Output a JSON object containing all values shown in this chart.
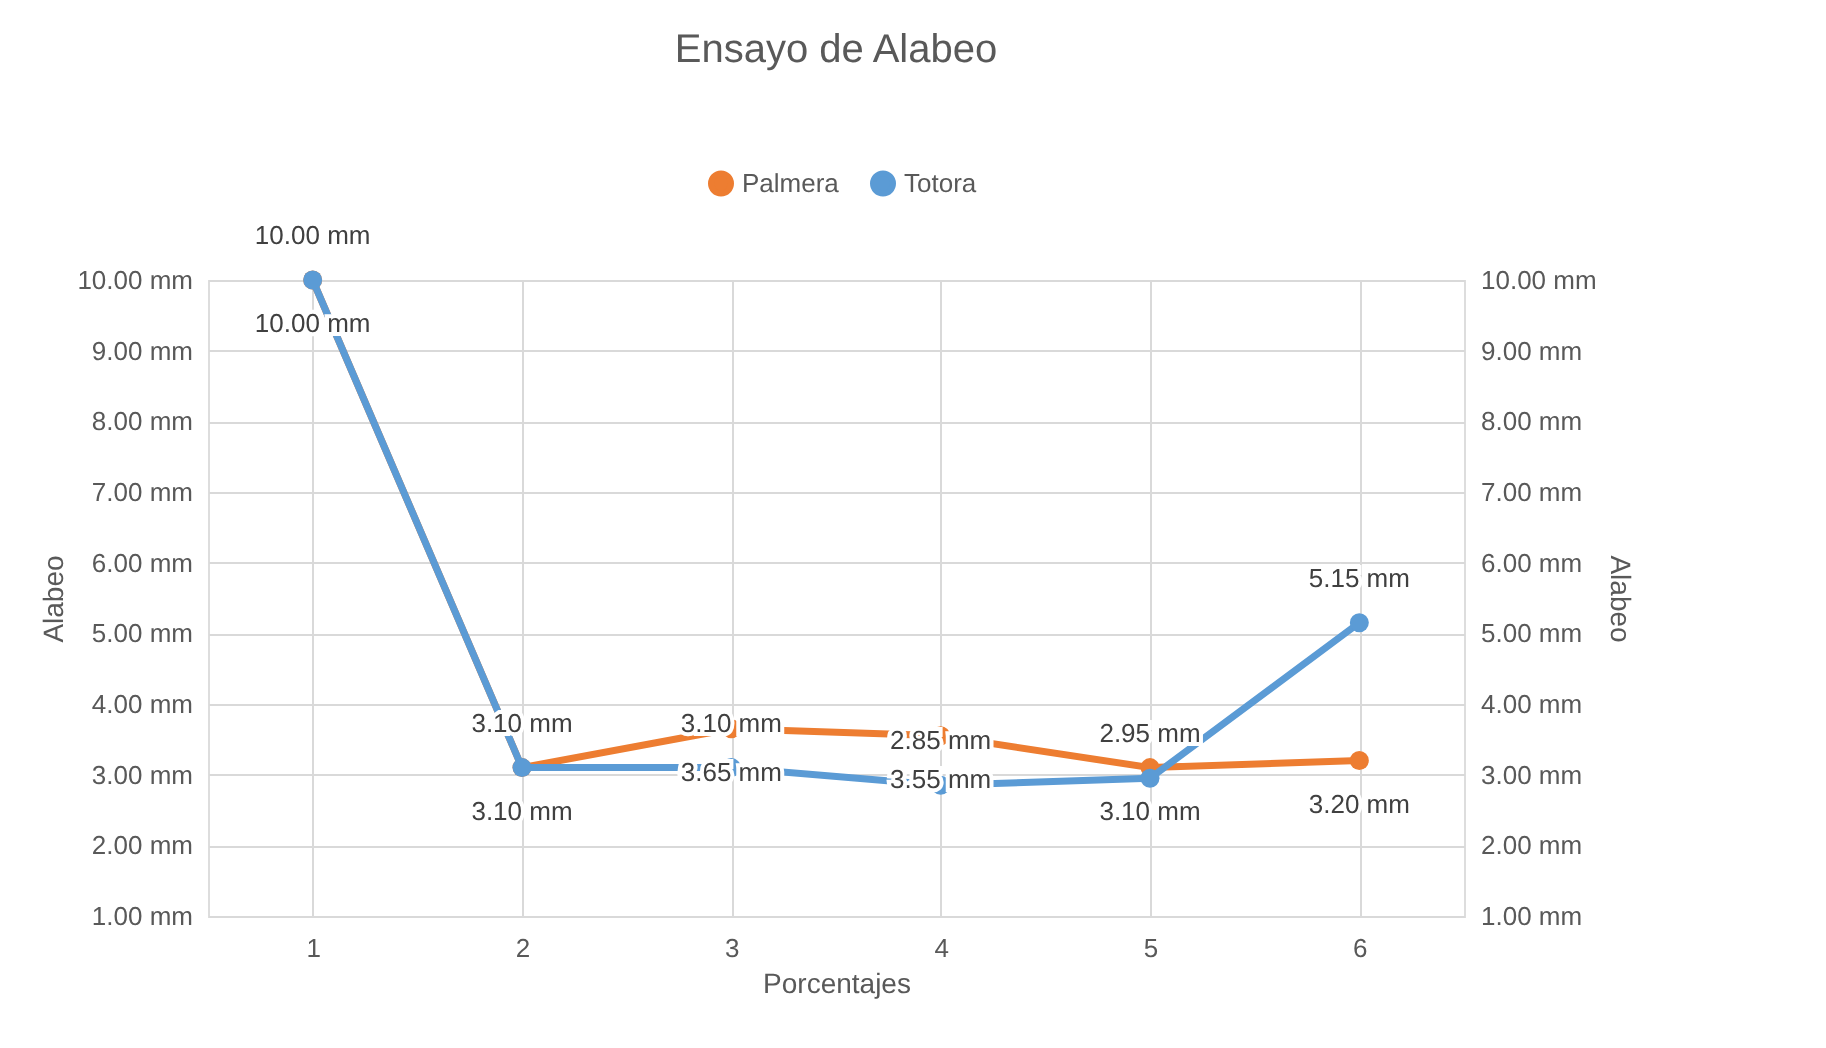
{
  "chart_data": {
    "type": "line",
    "title": "Ensayo de Alabeo",
    "xlabel": "Porcentajes",
    "ylabel": "Alabeo",
    "y2label": "Alabeo",
    "categories": [
      "1",
      "2",
      "3",
      "4",
      "5",
      "6"
    ],
    "series": [
      {
        "name": "Palmera",
        "color": "#ed7d31",
        "axis": "y2",
        "values": [
          10.0,
          3.1,
          3.65,
          3.55,
          3.1,
          3.2
        ],
        "value_labels": [
          "10.00 mm",
          "3.10 mm",
          "3.65 mm",
          "3.55 mm",
          "3.10 mm",
          "3.20 mm"
        ]
      },
      {
        "name": "Totora",
        "color": "#5b9bd5",
        "values": [
          10.0,
          3.1,
          3.1,
          2.85,
          2.95,
          5.15
        ],
        "value_labels": [
          "10.00 mm",
          "3.10 mm",
          "3.10 mm",
          "2.85 mm",
          "2.95 mm",
          "5.15 mm"
        ]
      }
    ],
    "ylim": [
      1,
      10
    ],
    "yticks": [
      {
        "value": 1,
        "label": "1.00 mm"
      },
      {
        "value": 2,
        "label": "2.00 mm"
      },
      {
        "value": 3,
        "label": "3.00 mm"
      },
      {
        "value": 4,
        "label": "4.00 mm"
      },
      {
        "value": 5,
        "label": "5.00 mm"
      },
      {
        "value": 6,
        "label": "6.00 mm"
      },
      {
        "value": 7,
        "label": "7.00 mm"
      },
      {
        "value": 8,
        "label": "8.00 mm"
      },
      {
        "value": 9,
        "label": "9.00 mm"
      },
      {
        "value": 10,
        "label": "10.00 mm"
      }
    ],
    "y2lim": [
      1,
      10
    ],
    "y2ticks": [
      {
        "value": 1,
        "label": "1.00 mm"
      },
      {
        "value": 2,
        "label": "2.00 mm"
      },
      {
        "value": 3,
        "label": "3.00 mm"
      },
      {
        "value": 4,
        "label": "4.00 mm"
      },
      {
        "value": 5,
        "label": "5.00 mm"
      },
      {
        "value": 6,
        "label": "6.00 mm"
      },
      {
        "value": 7,
        "label": "7.00 mm"
      },
      {
        "value": 8,
        "label": "8.00 mm"
      },
      {
        "value": 9,
        "label": "9.00 mm"
      },
      {
        "value": 10,
        "label": "10.00 mm"
      }
    ],
    "grid": true,
    "legend": "top",
    "marker": "circle",
    "line_style": "solid"
  }
}
